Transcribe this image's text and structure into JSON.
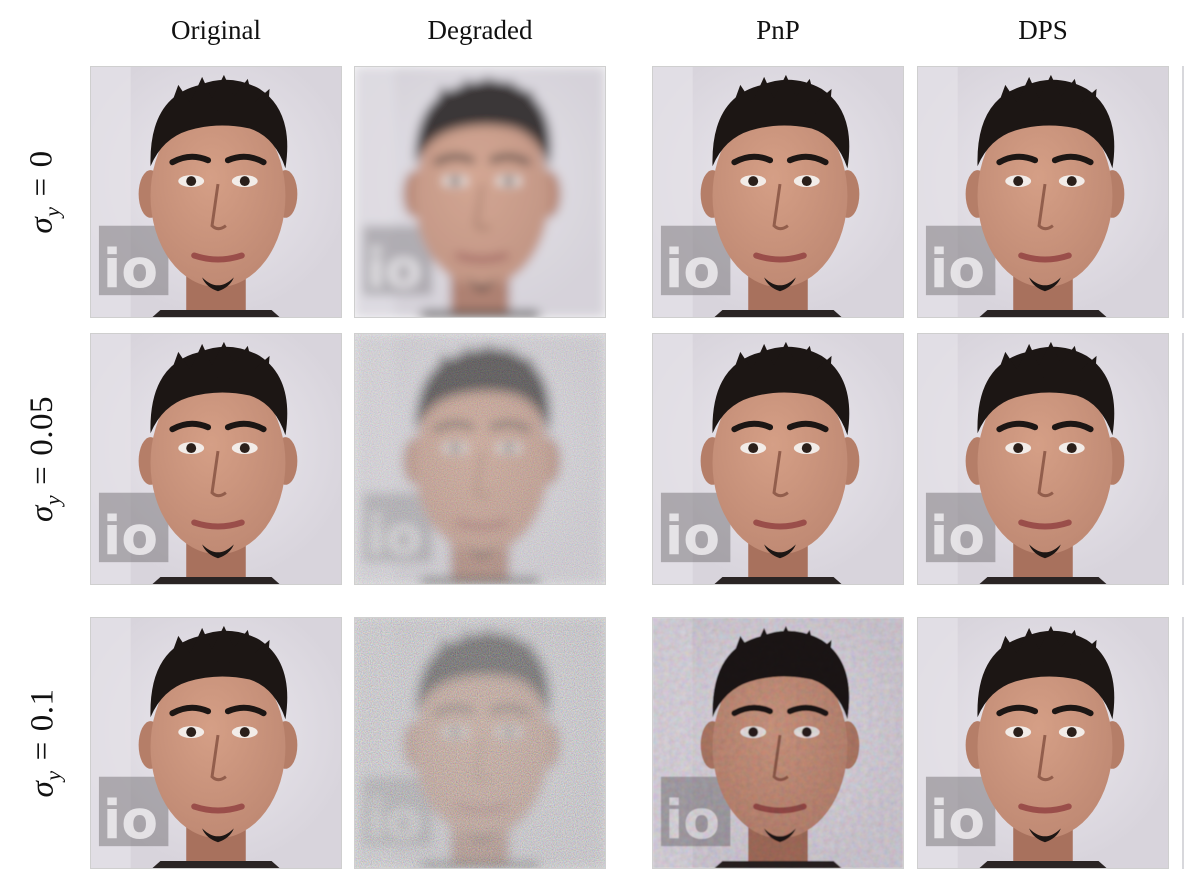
{
  "columns": [
    "Original",
    "Degraded",
    "PnP",
    "DPS"
  ],
  "rows": [
    {
      "symbol": "σ",
      "subscript": "y",
      "equals": "=",
      "value": "0"
    },
    {
      "symbol": "σ",
      "subscript": "y",
      "equals": "=",
      "value": "0.05"
    },
    {
      "symbol": "σ",
      "subscript": "y",
      "equals": "=",
      "value": "0.1"
    }
  ],
  "colors": {
    "background_wall": "#d8d4dc",
    "skin": "#c08a74",
    "hair": "#1c1614",
    "logo_gray": "#6e6a6e"
  },
  "grid": {
    "cells": [
      [
        "face-photo",
        "face-photo-blurred",
        "face-photo-restored",
        "face-photo-restored"
      ],
      [
        "face-photo",
        "face-photo-blurred-noisy",
        "face-photo-restored",
        "face-photo-restored"
      ],
      [
        "face-photo",
        "face-photo-blurred-very-noisy",
        "face-photo-restored-artifacts",
        "face-photo-restored"
      ]
    ]
  }
}
